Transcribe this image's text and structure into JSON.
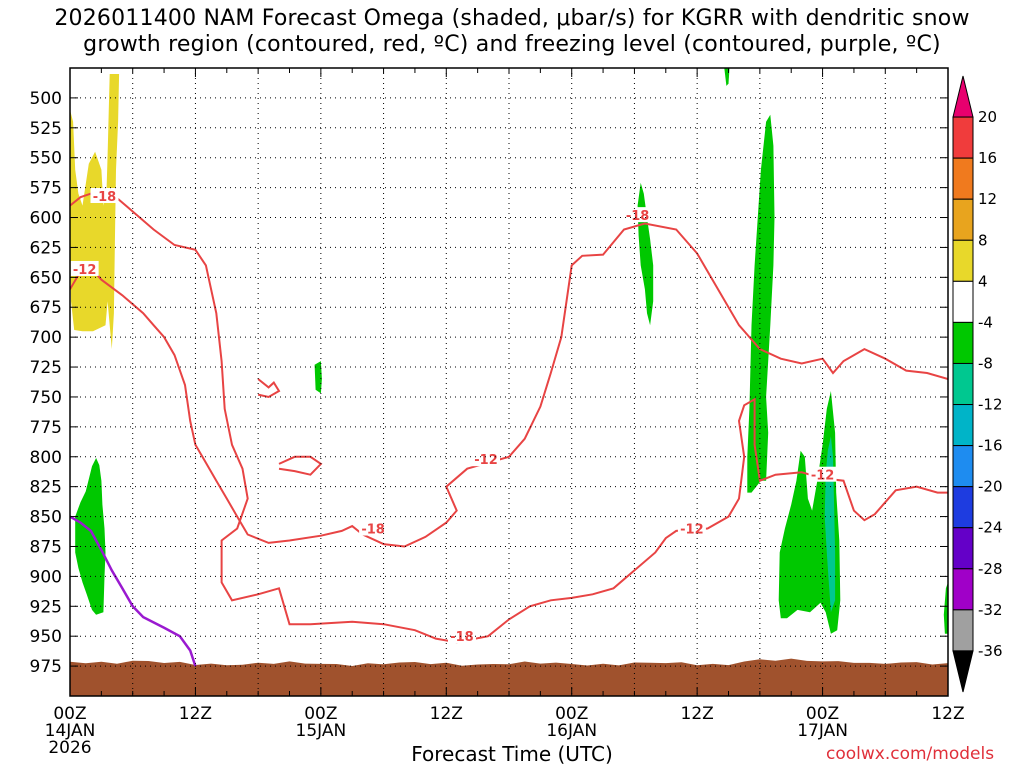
{
  "chart_data": {
    "type": "heatmap",
    "title_line1": "2026011400 NAM Forecast Omega (shaded, μbar/s) for KGRR with dendritic snow",
    "title_line2": "growth region (contoured, red, ºC) and freezing level (contoured, purple, ºC)",
    "xlabel": "Forecast Time (UTC)",
    "credit": "coolwx.com/models",
    "x_range_hours": [
      0,
      84
    ],
    "y_range_mb": [
      1000,
      475
    ],
    "y_ticks": [
      500,
      525,
      550,
      575,
      600,
      625,
      650,
      675,
      700,
      725,
      750,
      775,
      800,
      825,
      850,
      875,
      900,
      925,
      950,
      975
    ],
    "x_ticks": [
      {
        "hour": 0,
        "lines": [
          "00Z",
          "14JAN",
          "2026"
        ]
      },
      {
        "hour": 12,
        "lines": [
          "12Z"
        ]
      },
      {
        "hour": 24,
        "lines": [
          "00Z",
          "15JAN"
        ]
      },
      {
        "hour": 36,
        "lines": [
          "12Z"
        ]
      },
      {
        "hour": 48,
        "lines": [
          "00Z",
          "16JAN"
        ]
      },
      {
        "hour": 60,
        "lines": [
          "12Z"
        ]
      },
      {
        "hour": 72,
        "lines": [
          "00Z",
          "17JAN"
        ]
      },
      {
        "hour": 84,
        "lines": [
          "12Z"
        ]
      }
    ],
    "colorbar": {
      "labels": [
        "20",
        "16",
        "12",
        "8",
        "4",
        "-4",
        "-8",
        "-12",
        "-16",
        "-20",
        "-24",
        "-28",
        "-32",
        "-36"
      ],
      "colors": [
        "#e8006e",
        "#f03c3c",
        "#f07a1e",
        "#e8a41e",
        "#e8d82a",
        "#ffffff",
        "#00c800",
        "#00c890",
        "#00b4c8",
        "#1e8cf0",
        "#1e3ce0",
        "#6400c8",
        "#a000c8",
        "#a0a0a0",
        "#000000"
      ]
    },
    "omega_regions": [
      {
        "name": "yellow-upward-early",
        "value": 4,
        "color": "#e8d82a",
        "points": [
          [
            0,
            510
          ],
          [
            0.3,
            520
          ],
          [
            0.5,
            560
          ],
          [
            0.8,
            580
          ],
          [
            1.2,
            590
          ],
          [
            1.8,
            555
          ],
          [
            2.4,
            545
          ],
          [
            3.0,
            560
          ],
          [
            3.2,
            590
          ],
          [
            3.5,
            575
          ],
          [
            3.6,
            548
          ],
          [
            3.8,
            480
          ],
          [
            4.7,
            480
          ],
          [
            4.6,
            520
          ],
          [
            4.4,
            560
          ],
          [
            4.3,
            620
          ],
          [
            4.2,
            680
          ],
          [
            4.0,
            710
          ],
          [
            3.6,
            670
          ],
          [
            3.4,
            690
          ],
          [
            2.2,
            695
          ],
          [
            1.2,
            695
          ],
          [
            0.4,
            694
          ],
          [
            0.1,
            670
          ],
          [
            0,
            600
          ]
        ]
      },
      {
        "name": "green-early-lowlevel",
        "value": -4,
        "color": "#00c800",
        "points": [
          [
            0.5,
            850
          ],
          [
            1.0,
            838
          ],
          [
            1.5,
            829
          ],
          [
            1.9,
            815
          ],
          [
            2.1,
            808
          ],
          [
            2.5,
            801
          ],
          [
            2.8,
            807
          ],
          [
            3.0,
            820
          ],
          [
            3.1,
            840
          ],
          [
            3.3,
            860
          ],
          [
            3.4,
            880
          ],
          [
            3.3,
            900
          ],
          [
            3.2,
            930
          ],
          [
            2.5,
            932
          ],
          [
            2.1,
            928
          ],
          [
            1.6,
            915
          ],
          [
            1.2,
            905
          ],
          [
            0.8,
            893
          ],
          [
            0.5,
            880
          ]
        ]
      },
      {
        "name": "green-15jan-small",
        "value": -4,
        "color": "#00c800",
        "points": [
          [
            23.4,
            723
          ],
          [
            24.0,
            720
          ],
          [
            24.1,
            735
          ],
          [
            24.0,
            747
          ],
          [
            23.5,
            744
          ]
        ]
      },
      {
        "name": "green-16jan-mid",
        "value": -4,
        "color": "#00c800",
        "points": [
          [
            54.6,
            571
          ],
          [
            54.9,
            580
          ],
          [
            55.2,
            600
          ],
          [
            55.5,
            618
          ],
          [
            55.8,
            640
          ],
          [
            55.8,
            670
          ],
          [
            55.5,
            690
          ],
          [
            55.2,
            680
          ],
          [
            55.0,
            660
          ],
          [
            54.6,
            640
          ],
          [
            54.4,
            615
          ],
          [
            54.3,
            590
          ]
        ]
      },
      {
        "name": "green-16jan-top",
        "value": -4,
        "color": "#00c800",
        "points": [
          [
            62.6,
            475
          ],
          [
            63.1,
            475
          ],
          [
            63.0,
            488
          ],
          [
            62.8,
            490
          ]
        ]
      },
      {
        "name": "green-tall-column",
        "value": -4,
        "color": "#00c800",
        "points": [
          [
            65.2,
            690
          ],
          [
            65.5,
            640
          ],
          [
            66.1,
            560
          ],
          [
            66.6,
            520
          ],
          [
            67.0,
            514
          ],
          [
            67.3,
            540
          ],
          [
            67.4,
            600
          ],
          [
            67.3,
            640
          ],
          [
            67.0,
            690
          ],
          [
            66.6,
            750
          ],
          [
            66.8,
            780
          ],
          [
            66.6,
            820
          ],
          [
            66.1,
            820
          ],
          [
            65.2,
            830
          ],
          [
            64.8,
            830
          ],
          [
            64.8,
            800
          ],
          [
            65.0,
            760
          ]
        ]
      },
      {
        "name": "green-17jan-cluster",
        "value": -4,
        "color": "#00c800",
        "points": [
          [
            67.8,
            920
          ],
          [
            67.9,
            880
          ],
          [
            68.4,
            860
          ],
          [
            69.0,
            840
          ],
          [
            69.5,
            820
          ],
          [
            69.9,
            795
          ],
          [
            70.3,
            800
          ],
          [
            70.6,
            835
          ],
          [
            71.0,
            845
          ],
          [
            71.5,
            820
          ],
          [
            72.0,
            790
          ],
          [
            72.4,
            760
          ],
          [
            72.8,
            745
          ],
          [
            73.2,
            780
          ],
          [
            73.3,
            830
          ],
          [
            73.6,
            870
          ],
          [
            73.7,
            920
          ],
          [
            73.4,
            945
          ],
          [
            72.8,
            948
          ],
          [
            72.3,
            930
          ],
          [
            71.8,
            922
          ],
          [
            70.8,
            930
          ],
          [
            69.6,
            928
          ],
          [
            68.6,
            935
          ],
          [
            68.0,
            935
          ]
        ]
      },
      {
        "name": "teal-17jan-core",
        "value": -8,
        "color": "#00c890",
        "points": [
          [
            72.3,
            815
          ],
          [
            72.5,
            795
          ],
          [
            72.8,
            783
          ],
          [
            73.0,
            800
          ],
          [
            73.1,
            840
          ],
          [
            73.2,
            880
          ],
          [
            73.2,
            920
          ],
          [
            72.8,
            930
          ],
          [
            72.6,
            905
          ],
          [
            72.4,
            880
          ],
          [
            72.2,
            850
          ]
        ]
      },
      {
        "name": "green-right-edge",
        "value": -4,
        "color": "#00c800",
        "points": [
          [
            83.6,
            932
          ],
          [
            83.8,
            910
          ],
          [
            84,
            905
          ],
          [
            84,
            948
          ],
          [
            83.7,
            948
          ]
        ]
      }
    ],
    "temperature_contours": [
      {
        "label": "-18",
        "color": "#e84444",
        "points": [
          [
            0,
            590
          ],
          [
            1,
            583
          ],
          [
            2,
            580
          ],
          [
            4,
            580
          ],
          [
            6,
            595
          ],
          [
            8,
            610
          ],
          [
            10,
            623
          ],
          [
            12,
            627
          ],
          [
            13,
            640
          ],
          [
            14,
            680
          ],
          [
            14.5,
            720
          ],
          [
            14.8,
            760
          ],
          [
            15.5,
            790
          ],
          [
            16.5,
            810
          ],
          [
            17,
            835
          ],
          [
            16,
            860
          ],
          [
            14.5,
            870
          ],
          [
            14.5,
            905
          ],
          [
            15.5,
            920
          ],
          [
            18,
            915
          ],
          [
            20,
            910
          ],
          [
            21,
            940
          ],
          [
            23,
            940
          ],
          [
            25,
            939
          ],
          [
            27,
            938
          ],
          [
            30,
            940
          ],
          [
            33,
            945
          ],
          [
            35,
            952
          ],
          [
            37,
            955
          ],
          [
            40,
            950
          ],
          [
            42,
            936
          ],
          [
            44,
            925
          ],
          [
            46,
            920
          ],
          [
            48,
            918
          ],
          [
            50,
            915
          ],
          [
            52,
            910
          ],
          [
            54,
            895
          ],
          [
            56,
            880
          ],
          [
            57,
            868
          ],
          [
            58,
            862
          ],
          [
            61,
            860
          ],
          [
            63,
            850
          ],
          [
            64,
            835
          ],
          [
            64.5,
            800
          ],
          [
            64,
            770
          ],
          [
            64.5,
            757
          ],
          [
            65.5,
            752
          ],
          [
            65.5,
            790
          ],
          [
            66,
            820
          ],
          [
            67.5,
            815
          ],
          [
            70,
            813
          ],
          [
            72,
            818
          ],
          [
            74,
            820
          ],
          [
            75,
            845
          ],
          [
            76,
            853
          ],
          [
            77,
            848
          ],
          [
            79,
            828
          ],
          [
            81,
            825
          ],
          [
            83,
            830
          ],
          [
            84,
            830
          ]
        ]
      },
      {
        "label": "-12",
        "color": "#e84444",
        "points": [
          [
            0,
            660
          ],
          [
            1,
            645
          ],
          [
            2,
            642
          ],
          [
            3,
            652
          ],
          [
            5,
            665
          ],
          [
            7,
            680
          ],
          [
            8,
            690
          ],
          [
            9,
            700
          ],
          [
            10,
            715
          ],
          [
            11,
            740
          ],
          [
            11.5,
            770
          ],
          [
            12,
            790
          ],
          [
            13,
            805
          ],
          [
            14,
            820
          ],
          [
            15,
            835
          ],
          [
            16,
            850
          ],
          [
            17,
            865
          ],
          [
            19,
            872
          ],
          [
            21,
            870
          ],
          [
            24,
            866
          ],
          [
            26,
            862
          ],
          [
            27,
            858
          ],
          [
            28,
            865
          ],
          [
            30,
            873
          ],
          [
            32,
            875
          ],
          [
            34,
            867
          ],
          [
            36,
            855
          ],
          [
            37,
            845
          ],
          [
            36,
            825
          ],
          [
            38,
            810
          ],
          [
            40,
            805
          ],
          [
            42,
            800
          ],
          [
            43.5,
            785
          ],
          [
            45,
            758
          ],
          [
            46,
            730
          ],
          [
            47,
            700
          ],
          [
            47.5,
            670
          ],
          [
            48,
            640
          ],
          [
            49,
            632
          ],
          [
            51,
            631
          ],
          [
            53,
            610
          ],
          [
            55,
            605
          ],
          [
            58,
            610
          ],
          [
            60,
            630
          ],
          [
            62,
            660
          ],
          [
            64,
            690
          ],
          [
            66,
            710
          ],
          [
            68,
            718
          ],
          [
            70,
            722
          ],
          [
            72,
            718
          ],
          [
            73,
            730
          ],
          [
            74,
            720
          ],
          [
            76,
            710
          ],
          [
            78,
            718
          ],
          [
            80,
            728
          ],
          [
            82,
            730
          ],
          [
            84,
            735
          ]
        ]
      },
      {
        "label": "-18",
        "color": "#e84444",
        "points": [
          [
            20,
            806
          ],
          [
            21.5,
            800
          ],
          [
            23,
            800
          ],
          [
            24,
            806
          ],
          [
            23,
            815
          ],
          [
            21.5,
            812
          ],
          [
            20,
            810
          ]
        ]
      },
      {
        "label": "-18",
        "color": "#e84444",
        "points": [
          [
            18,
            735
          ],
          [
            19,
            742
          ],
          [
            19.5,
            738
          ],
          [
            20,
            745
          ],
          [
            19,
            750
          ],
          [
            18,
            748
          ]
        ]
      }
    ],
    "freezing_level": {
      "color": "#9a1ad0",
      "points": [
        [
          0,
          850
        ],
        [
          1,
          855
        ],
        [
          2,
          862
        ],
        [
          3,
          878
        ],
        [
          4,
          895
        ],
        [
          5,
          910
        ],
        [
          6,
          925
        ],
        [
          7,
          934
        ],
        [
          9,
          943
        ],
        [
          10.5,
          950
        ],
        [
          11.5,
          962
        ],
        [
          12,
          975
        ]
      ]
    },
    "terrain": {
      "color": "#a0522d",
      "top_mb": 973
    }
  }
}
